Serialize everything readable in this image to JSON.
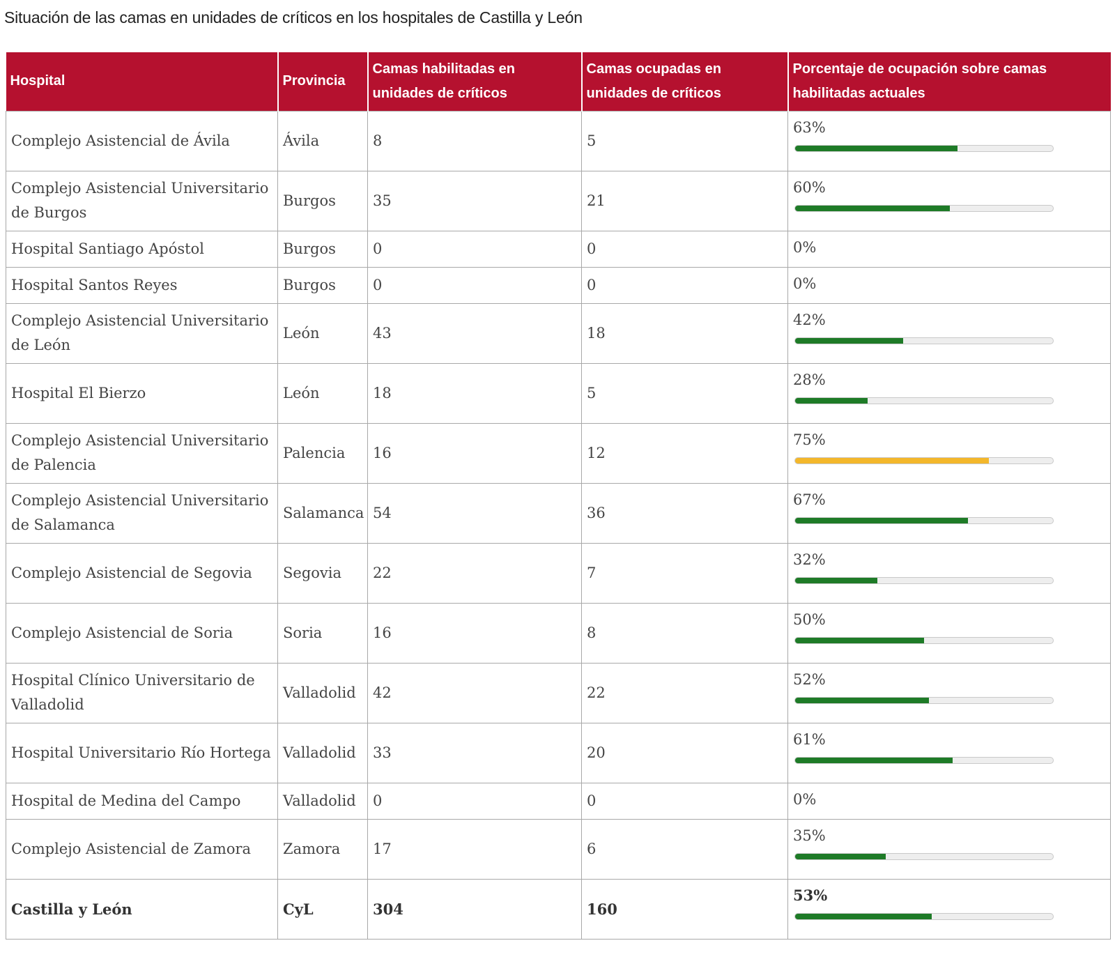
{
  "title": "Situación de las camas en unidades de críticos en los hospitales de Castilla y León",
  "colors": {
    "header_bg": "#b5112f",
    "bar_green": "#1e7b27",
    "bar_amber": "#f3b72b",
    "bar_track": "#eeeeee"
  },
  "table": {
    "headers": [
      "Hospital",
      "Provincia",
      "Camas habilitadas en unidades de críticos",
      "Camas ocupadas en unidades de críticos",
      "Porcentaje de ocupación sobre camas habilitadas actuales"
    ],
    "rows": [
      {
        "hospital": "Complejo Asistencial de Ávila",
        "provincia": "Ávila",
        "habilitadas": "8",
        "ocupadas": "5",
        "porcentaje": "63%",
        "pct_value": 63,
        "bar_color": "green"
      },
      {
        "hospital": "Complejo Asistencial Universitario de Burgos",
        "provincia": "Burgos",
        "habilitadas": "35",
        "ocupadas": "21",
        "porcentaje": "60%",
        "pct_value": 60,
        "bar_color": "green"
      },
      {
        "hospital": "Hospital Santiago Apóstol",
        "provincia": "Burgos",
        "habilitadas": "0",
        "ocupadas": "0",
        "porcentaje": "0%",
        "pct_value": 0,
        "bar_color": "none"
      },
      {
        "hospital": "Hospital Santos Reyes",
        "provincia": "Burgos",
        "habilitadas": "0",
        "ocupadas": "0",
        "porcentaje": "0%",
        "pct_value": 0,
        "bar_color": "none"
      },
      {
        "hospital": "Complejo Asistencial Universitario de León",
        "provincia": "León",
        "habilitadas": "43",
        "ocupadas": "18",
        "porcentaje": "42%",
        "pct_value": 42,
        "bar_color": "green"
      },
      {
        "hospital": "Hospital El Bierzo",
        "provincia": "León",
        "habilitadas": "18",
        "ocupadas": "5",
        "porcentaje": "28%",
        "pct_value": 28,
        "bar_color": "green"
      },
      {
        "hospital": "Complejo Asistencial Universitario de Palencia",
        "provincia": "Palencia",
        "habilitadas": "16",
        "ocupadas": "12",
        "porcentaje": "75%",
        "pct_value": 75,
        "bar_color": "amber"
      },
      {
        "hospital": "Complejo Asistencial Universitario de Salamanca",
        "provincia": "Salamanca",
        "habilitadas": "54",
        "ocupadas": "36",
        "porcentaje": "67%",
        "pct_value": 67,
        "bar_color": "green"
      },
      {
        "hospital": "Complejo Asistencial de Segovia",
        "provincia": "Segovia",
        "habilitadas": "22",
        "ocupadas": "7",
        "porcentaje": "32%",
        "pct_value": 32,
        "bar_color": "green"
      },
      {
        "hospital": "Complejo Asistencial de Soria",
        "provincia": "Soria",
        "habilitadas": "16",
        "ocupadas": "8",
        "porcentaje": "50%",
        "pct_value": 50,
        "bar_color": "green"
      },
      {
        "hospital": "Hospital Clínico Universitario de Valladolid",
        "provincia": "Valladolid",
        "habilitadas": "42",
        "ocupadas": "22",
        "porcentaje": "52%",
        "pct_value": 52,
        "bar_color": "green"
      },
      {
        "hospital": "Hospital Universitario Río Hortega",
        "provincia": "Valladolid",
        "habilitadas": "33",
        "ocupadas": "20",
        "porcentaje": "61%",
        "pct_value": 61,
        "bar_color": "green"
      },
      {
        "hospital": "Hospital de Medina del Campo",
        "provincia": "Valladolid",
        "habilitadas": "0",
        "ocupadas": "0",
        "porcentaje": "0%",
        "pct_value": 0,
        "bar_color": "none"
      },
      {
        "hospital": "Complejo Asistencial de Zamora",
        "provincia": "Zamora",
        "habilitadas": "17",
        "ocupadas": "6",
        "porcentaje": "35%",
        "pct_value": 35,
        "bar_color": "green"
      },
      {
        "hospital": "Castilla y León",
        "provincia": "CyL",
        "habilitadas": "304",
        "ocupadas": "160",
        "porcentaje": "53%",
        "pct_value": 53,
        "bar_color": "green",
        "is_total": true
      }
    ]
  }
}
